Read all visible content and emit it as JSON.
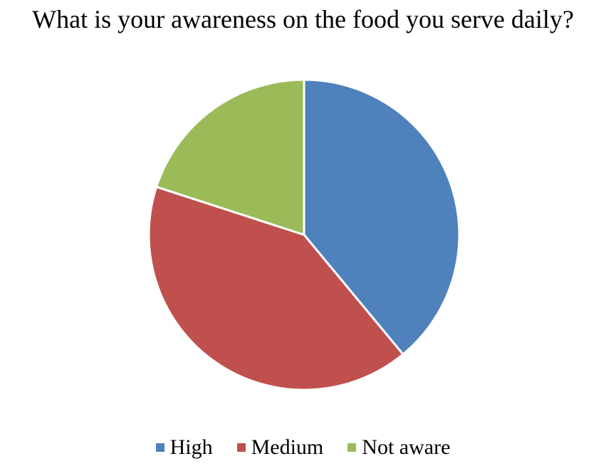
{
  "chart_data": {
    "type": "pie",
    "title": "What is your awareness on the food you serve daily?",
    "categories": [
      "High",
      "Medium",
      "Not aware"
    ],
    "values": [
      39,
      41,
      20
    ],
    "colors": [
      "#4f81bd",
      "#c0504d",
      "#9bbb59"
    ],
    "start_angle_deg": 0,
    "direction": "clockwise",
    "legend": "bottom"
  }
}
